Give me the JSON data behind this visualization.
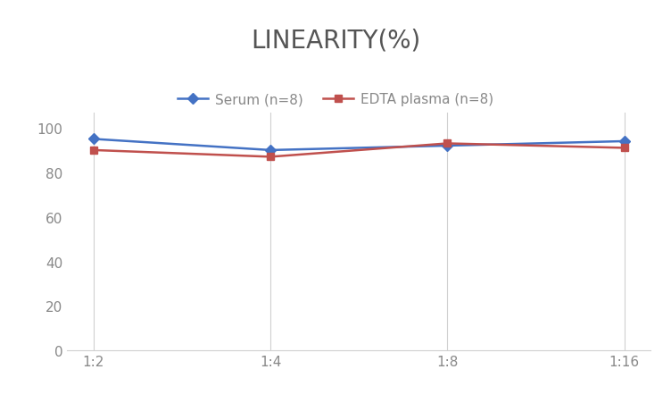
{
  "title": "LINEARITY(%)",
  "title_fontsize": 20,
  "title_fontweight": "normal",
  "title_color": "#555555",
  "categories": [
    "1:2",
    "1:4",
    "1:8",
    "1:16"
  ],
  "serum_values": [
    95,
    90,
    92,
    94
  ],
  "edta_values": [
    90,
    87,
    93,
    91
  ],
  "serum_label": "Serum (n=8)",
  "edta_label": "EDTA plasma (n=8)",
  "serum_color": "#4472C4",
  "edta_color": "#C0504D",
  "ylim": [
    0,
    107
  ],
  "yticks": [
    0,
    20,
    40,
    60,
    80,
    100
  ],
  "background_color": "#FFFFFF",
  "grid_color": "#D0D0D0",
  "legend_fontsize": 11,
  "axis_fontsize": 11,
  "tick_color": "#888888"
}
